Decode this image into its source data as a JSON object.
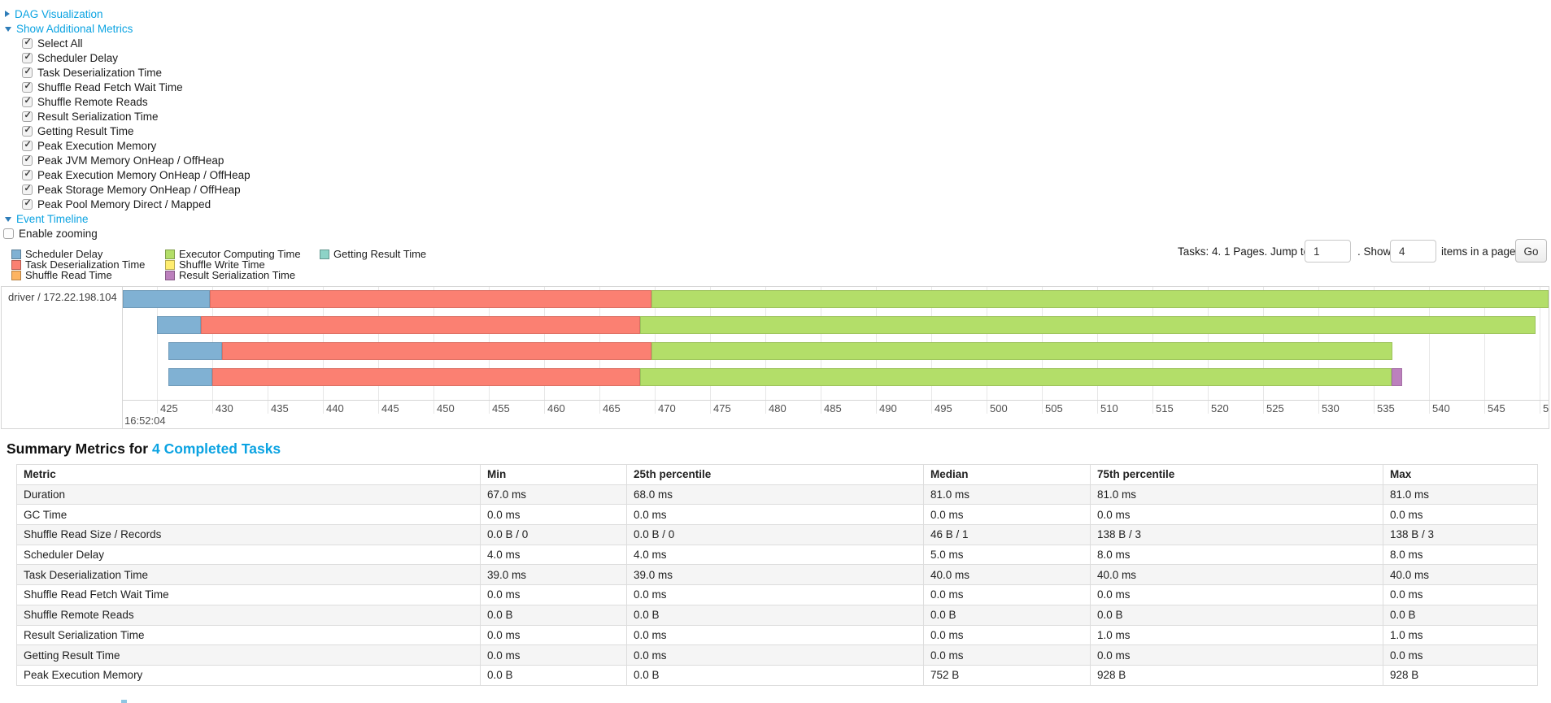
{
  "panel": {
    "dag_visualization": "DAG Visualization",
    "show_additional_metrics": "Show Additional Metrics",
    "metrics_checkboxes": [
      {
        "label": "Select All",
        "checked": true
      },
      {
        "label": "Scheduler Delay",
        "checked": true
      },
      {
        "label": "Task Deserialization Time",
        "checked": true
      },
      {
        "label": "Shuffle Read Fetch Wait Time",
        "checked": true
      },
      {
        "label": "Shuffle Remote Reads",
        "checked": true
      },
      {
        "label": "Result Serialization Time",
        "checked": true
      },
      {
        "label": "Getting Result Time",
        "checked": true
      },
      {
        "label": "Peak Execution Memory",
        "checked": true
      },
      {
        "label": "Peak JVM Memory OnHeap / OffHeap",
        "checked": true
      },
      {
        "label": "Peak Execution Memory OnHeap / OffHeap",
        "checked": true
      },
      {
        "label": "Peak Storage Memory OnHeap / OffHeap",
        "checked": true
      },
      {
        "label": "Peak Pool Memory Direct / Mapped",
        "checked": true
      }
    ],
    "event_timeline": "Event Timeline",
    "enable_zooming": {
      "label": "Enable zooming",
      "checked": false
    }
  },
  "legend": {
    "columns": [
      [
        {
          "key": "scheduler_delay",
          "label": "Scheduler Delay"
        },
        {
          "key": "task_deserialization",
          "label": "Task Deserialization Time"
        },
        {
          "key": "shuffle_read",
          "label": "Shuffle Read Time"
        }
      ],
      [
        {
          "key": "executor_computing",
          "label": "Executor Computing Time"
        },
        {
          "key": "shuffle_write",
          "label": "Shuffle Write Time"
        },
        {
          "key": "result_serialization",
          "label": "Result Serialization Time"
        }
      ],
      [
        {
          "key": "getting_result",
          "label": "Getting Result Time"
        }
      ]
    ]
  },
  "pager": {
    "prefix": "Tasks: 4. 1 Pages. Jump to",
    "jump_value": "1",
    "middle": ". Show",
    "show_value": "4",
    "suffix": "items in a page.",
    "go_label": "Go"
  },
  "chart_data": {
    "type": "timeline",
    "group_label": "driver / 172.22.198.104",
    "x_axis": {
      "major_label": "16:52:04",
      "minor_unit": "ms",
      "min": 425,
      "max": 550,
      "step": 5
    },
    "colors": {
      "scheduler_delay": "#80B1D3",
      "task_deserialization": "#FB8072",
      "shuffle_read": "#FDB462",
      "executor_computing": "#B3DE69",
      "shuffle_write": "#FFED6F",
      "result_serialization": "#BC80BD",
      "getting_result": "#8DD3C7"
    },
    "tasks": [
      {
        "segments": [
          [
            "scheduler_delay",
            421.9,
            429.8
          ],
          [
            "task_deserialization",
            429.8,
            469.7
          ],
          [
            "executor_computing",
            469.7,
            551.8
          ]
        ]
      },
      {
        "segments": [
          [
            "scheduler_delay",
            425.0,
            429.0
          ],
          [
            "task_deserialization",
            429.0,
            468.7
          ],
          [
            "executor_computing",
            468.7,
            549.6
          ]
        ]
      },
      {
        "segments": [
          [
            "scheduler_delay",
            426.0,
            430.9
          ],
          [
            "task_deserialization",
            430.9,
            469.7
          ],
          [
            "executor_computing",
            469.7,
            536.7
          ]
        ]
      },
      {
        "segments": [
          [
            "scheduler_delay",
            426.0,
            430.0
          ],
          [
            "task_deserialization",
            430.0,
            468.7
          ],
          [
            "executor_computing",
            468.7,
            536.6
          ],
          [
            "result_serialization",
            536.6,
            537.6
          ]
        ]
      }
    ]
  },
  "summary": {
    "title_prefix": "Summary Metrics for",
    "title_link": "4 Completed Tasks",
    "table": {
      "headers": [
        "Metric",
        "Min",
        "25th percentile",
        "Median",
        "75th percentile",
        "Max"
      ],
      "rows": [
        [
          "Duration",
          "67.0 ms",
          "68.0 ms",
          "81.0 ms",
          "81.0 ms",
          "81.0 ms"
        ],
        [
          "GC Time",
          "0.0 ms",
          "0.0 ms",
          "0.0 ms",
          "0.0 ms",
          "0.0 ms"
        ],
        [
          "Shuffle Read Size / Records",
          "0.0 B / 0",
          "0.0 B / 0",
          "46 B / 1",
          "138 B / 3",
          "138 B / 3"
        ],
        [
          "Scheduler Delay",
          "4.0 ms",
          "4.0 ms",
          "5.0 ms",
          "8.0 ms",
          "8.0 ms"
        ],
        [
          "Task Deserialization Time",
          "39.0 ms",
          "39.0 ms",
          "40.0 ms",
          "40.0 ms",
          "40.0 ms"
        ],
        [
          "Shuffle Read Fetch Wait Time",
          "0.0 ms",
          "0.0 ms",
          "0.0 ms",
          "0.0 ms",
          "0.0 ms"
        ],
        [
          "Shuffle Remote Reads",
          "0.0 B",
          "0.0 B",
          "0.0 B",
          "0.0 B",
          "0.0 B"
        ],
        [
          "Result Serialization Time",
          "0.0 ms",
          "0.0 ms",
          "0.0 ms",
          "1.0 ms",
          "1.0 ms"
        ],
        [
          "Getting Result Time",
          "0.0 ms",
          "0.0 ms",
          "0.0 ms",
          "0.0 ms",
          "0.0 ms"
        ],
        [
          "Peak Execution Memory",
          "0.0 B",
          "0.0 B",
          "752 B",
          "928 B",
          "928 B"
        ]
      ]
    }
  },
  "colors": {
    "link_blue": "#0ba3e2",
    "caret_blue": "#2d7cb8",
    "grid_line": "#e7e7e7",
    "chart_border": "#d6d6d6",
    "table_border": "#dddddd",
    "zebra_row": "#f5f5f5"
  }
}
